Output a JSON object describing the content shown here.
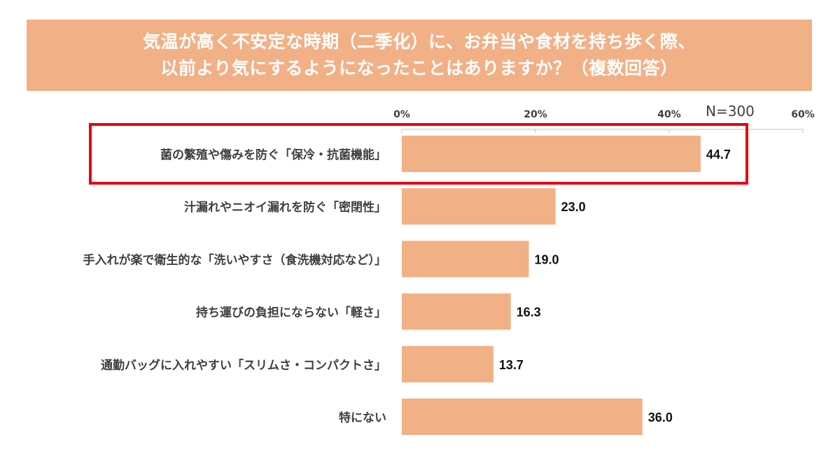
{
  "chart_data": {
    "type": "bar",
    "orientation": "horizontal",
    "title_lines": [
      "気温が高く不安定な時期（二季化）に、お弁当や食材を持ち歩く際、",
      "以前より気にするようになったことはありますか？（複数回答）"
    ],
    "note": "N=300",
    "categories": [
      "菌の繁殖や傷みを防ぐ「保冷・抗菌機能」",
      "汁漏れやニオイ漏れを防ぐ「密閉性」",
      "手入れが楽で衛生的な「洗いやすさ（食洗機対応など）」",
      "持ち運びの負担にならない「軽さ」",
      "通勤バッグに入れやすい「スリムさ・コンパクトさ」",
      "特にない"
    ],
    "values": [
      44.7,
      23.0,
      19.0,
      16.3,
      13.7,
      36.0
    ],
    "value_labels": [
      "44.7",
      "23.0",
      "19.0",
      "16.3",
      "13.7",
      "36.0"
    ],
    "xlim": [
      0,
      60
    ],
    "x_ticks": [
      "0%",
      "20%",
      "40%",
      "60%"
    ],
    "x_tick_values": [
      0,
      20,
      40,
      60
    ],
    "axis_position": "top",
    "grid": false,
    "highlighted_category_index": 0,
    "colors": {
      "bar": "#F2B086",
      "title_bg": "#F2B086",
      "highlight": "#E60012",
      "axis": "#BFBFBF"
    }
  }
}
